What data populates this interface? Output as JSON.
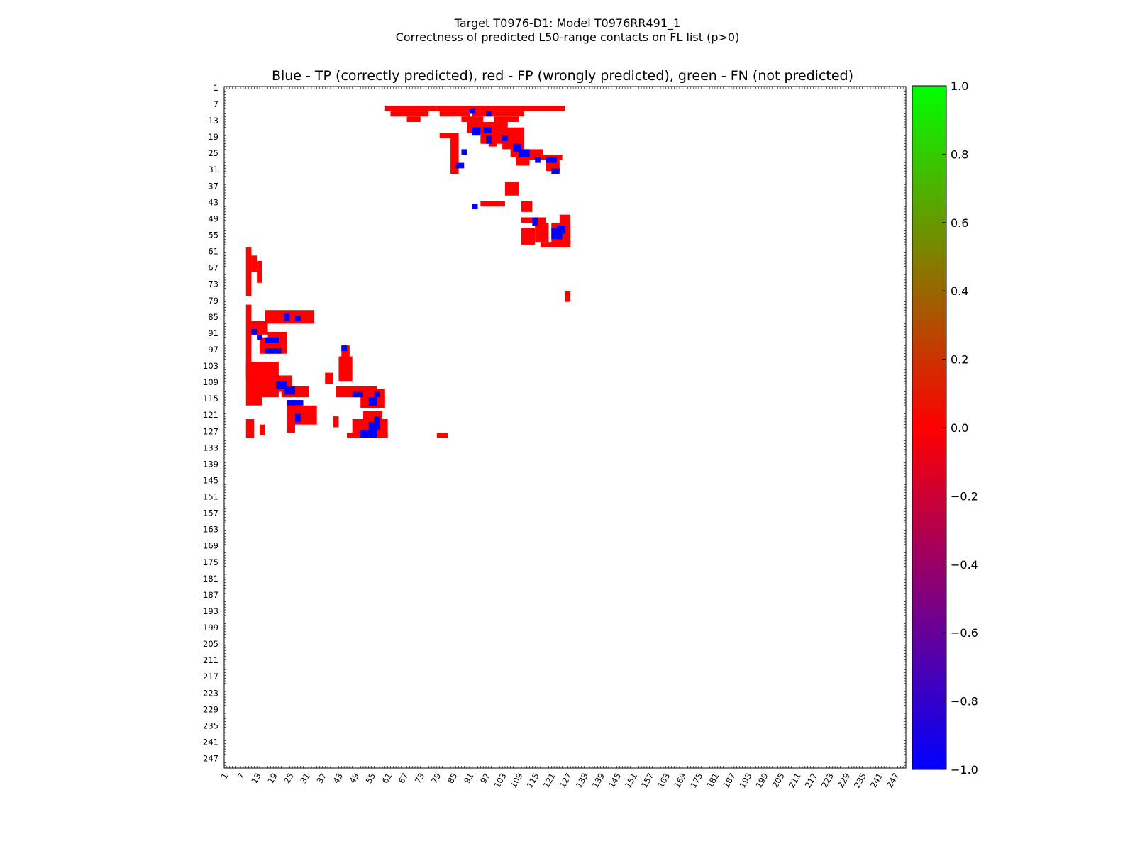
{
  "figure": {
    "suptitle_line1": "Target T0976-D1: Model T0976RR491_1",
    "suptitle_line2": "Correctness of predicted L50-range contacts on FL list (p>0)"
  },
  "chart_data": {
    "type": "heatmap",
    "title": "Blue - TP (correctly predicted), red - FP (wrongly predicted), green - FN (not predicted)",
    "xlabel": "",
    "ylabel": "",
    "xlim": [
      1,
      250
    ],
    "ylim": [
      1,
      250
    ],
    "x_ticks": [
      "1",
      "7",
      "13",
      "19",
      "25",
      "31",
      "37",
      "43",
      "49",
      "55",
      "61",
      "67",
      "73",
      "79",
      "85",
      "91",
      "97",
      "103",
      "109",
      "115",
      "121",
      "127",
      "133",
      "139",
      "145",
      "151",
      "157",
      "163",
      "169",
      "175",
      "181",
      "187",
      "193",
      "199",
      "205",
      "211",
      "217",
      "223",
      "229",
      "235",
      "241",
      "247"
    ],
    "y_ticks": [
      "1",
      "7",
      "13",
      "19",
      "25",
      "31",
      "37",
      "43",
      "49",
      "55",
      "61",
      "67",
      "73",
      "79",
      "85",
      "91",
      "97",
      "103",
      "109",
      "115",
      "121",
      "127",
      "133",
      "139",
      "145",
      "151",
      "157",
      "163",
      "169",
      "175",
      "181",
      "187",
      "193",
      "199",
      "205",
      "211",
      "217",
      "223",
      "229",
      "235",
      "241",
      "247"
    ],
    "colorbar": {
      "min": -1.0,
      "max": 1.0,
      "ticks": [
        "1.0",
        "0.8",
        "0.6",
        "0.4",
        "0.2",
        "0.0",
        "−0.2",
        "−0.4",
        "−0.6",
        "−0.8",
        "−1.0"
      ],
      "colors": [
        "#00ff00",
        "#ff0000",
        "#0000ff"
      ]
    },
    "legend": {
      "tp_color": "#0000ff",
      "fp_color": "#ff0000",
      "fn_color": "#00ff00"
    },
    "fp_regions": [
      [
        60,
        8,
        78,
        9
      ],
      [
        79,
        8,
        125,
        9
      ],
      [
        62,
        10,
        75,
        11
      ],
      [
        80,
        10,
        90,
        11
      ],
      [
        92,
        10,
        110,
        11
      ],
      [
        68,
        12,
        72,
        13
      ],
      [
        88,
        12,
        95,
        13
      ],
      [
        100,
        12,
        108,
        13
      ],
      [
        80,
        18,
        86,
        19
      ],
      [
        90,
        14,
        104,
        17
      ],
      [
        95,
        17,
        108,
        21
      ],
      [
        103,
        16,
        110,
        23
      ],
      [
        106,
        24,
        117,
        26
      ],
      [
        112,
        26,
        124,
        27
      ],
      [
        108,
        27,
        112,
        29
      ],
      [
        119,
        28,
        123,
        31
      ],
      [
        84,
        20,
        86,
        32
      ],
      [
        98,
        20,
        100,
        22
      ],
      [
        104,
        36,
        108,
        40
      ],
      [
        95,
        43,
        103,
        44
      ],
      [
        110,
        43,
        113,
        46
      ],
      [
        110,
        49,
        118,
        50
      ],
      [
        115,
        51,
        119,
        57
      ],
      [
        110,
        53,
        114,
        58
      ],
      [
        121,
        51,
        127,
        58
      ],
      [
        124,
        48,
        127,
        59
      ],
      [
        117,
        58,
        127,
        59
      ],
      [
        126,
        76,
        127,
        79
      ],
      [
        9,
        60,
        10,
        77
      ],
      [
        11,
        63,
        12,
        68
      ],
      [
        13,
        65,
        14,
        72
      ],
      [
        9,
        81,
        10,
        107
      ],
      [
        11,
        87,
        16,
        91
      ],
      [
        14,
        93,
        23,
        98
      ],
      [
        17,
        91,
        23,
        94
      ],
      [
        9,
        102,
        14,
        117
      ],
      [
        15,
        102,
        20,
        114
      ],
      [
        17,
        107,
        25,
        112
      ],
      [
        22,
        111,
        31,
        114
      ],
      [
        24,
        116,
        26,
        127
      ],
      [
        26,
        118,
        34,
        124
      ],
      [
        16,
        83,
        33,
        87
      ],
      [
        43,
        100,
        47,
        108
      ],
      [
        44,
        96,
        46,
        99
      ],
      [
        42,
        111,
        56,
        114
      ],
      [
        51,
        112,
        59,
        118
      ],
      [
        48,
        123,
        60,
        129
      ],
      [
        52,
        120,
        58,
        123
      ],
      [
        46,
        128,
        60,
        129
      ],
      [
        9,
        123,
        11,
        129
      ],
      [
        14,
        125,
        15,
        128
      ],
      [
        38,
        106,
        40,
        109
      ],
      [
        79,
        128,
        82,
        129
      ],
      [
        41,
        122,
        42,
        125
      ]
    ],
    "tp_regions": [
      [
        91,
        9,
        92,
        10
      ],
      [
        97,
        10,
        98,
        11
      ],
      [
        92,
        16,
        94,
        18
      ],
      [
        96,
        16,
        98,
        17
      ],
      [
        97,
        19,
        98,
        21
      ],
      [
        103,
        19,
        104,
        20
      ],
      [
        107,
        22,
        109,
        24
      ],
      [
        109,
        24,
        112,
        26
      ],
      [
        115,
        27,
        116,
        28
      ],
      [
        119,
        27,
        122,
        28
      ],
      [
        121,
        31,
        123,
        32
      ],
      [
        88,
        24,
        89,
        25
      ],
      [
        86,
        29,
        88,
        30
      ],
      [
        92,
        44,
        93,
        45
      ],
      [
        114,
        49,
        115,
        51
      ],
      [
        121,
        53,
        124,
        56
      ],
      [
        123,
        52,
        125,
        54
      ],
      [
        11,
        90,
        12,
        91
      ],
      [
        13,
        92,
        14,
        93
      ],
      [
        16,
        93,
        20,
        94
      ],
      [
        16,
        97,
        19,
        98
      ],
      [
        20,
        97,
        21,
        98
      ],
      [
        20,
        109,
        23,
        111
      ],
      [
        23,
        111,
        26,
        113
      ],
      [
        24,
        116,
        26,
        117
      ],
      [
        27,
        116,
        29,
        117
      ],
      [
        27,
        121,
        28,
        123
      ],
      [
        23,
        84,
        24,
        86
      ],
      [
        27,
        85,
        28,
        86
      ],
      [
        44,
        96,
        45,
        97
      ],
      [
        48,
        113,
        51,
        114
      ],
      [
        54,
        115,
        56,
        117
      ],
      [
        56,
        113,
        57,
        114
      ],
      [
        54,
        124,
        57,
        126
      ],
      [
        51,
        127,
        56,
        129
      ],
      [
        56,
        122,
        57,
        124
      ]
    ],
    "fn_regions": []
  }
}
